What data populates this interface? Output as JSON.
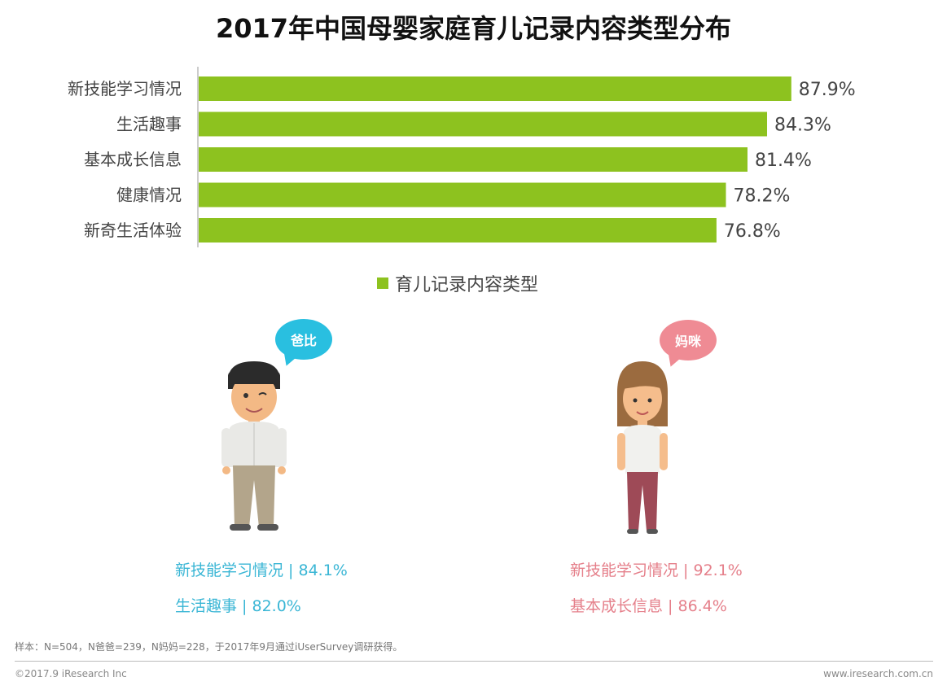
{
  "title": "2017年中国母婴家庭育儿记录内容类型分布",
  "chart_data": {
    "type": "bar",
    "orientation": "horizontal",
    "title": "2017年中国母婴家庭育儿记录内容类型分布",
    "categories": [
      "新技能学习情况",
      "生活趣事",
      "基本成长信息",
      "健康情况",
      "新奇生活体验"
    ],
    "series": [
      {
        "name": "育儿记录内容类型",
        "values": [
          87.9,
          84.3,
          81.4,
          78.2,
          76.8
        ],
        "labels": [
          "87.9%",
          "84.3%",
          "81.4%",
          "78.2%",
          "76.8%"
        ]
      }
    ],
    "xlim": [
      0,
      100
    ],
    "legend": "bottom-center",
    "grid": false,
    "color": "#8dc21f"
  },
  "legend_label": "育儿记录内容类型",
  "dad": {
    "bubble": "爸比",
    "stats": [
      "新技能学习情况 | 84.1%",
      "生活趣事 | 82.0%"
    ],
    "color": "#29bfe0"
  },
  "mom": {
    "bubble": "妈咪",
    "stats": [
      "新技能学习情况 | 92.1%",
      "基本成长信息 | 86.4%"
    ],
    "color": "#ef8b94"
  },
  "footnote": "样本：N=504，N爸爸=239，N妈妈=228，于2017年9月通过iUserSurvey调研获得。",
  "copyright": "©2017.9 iResearch Inc",
  "website": "www.iresearch.com.cn"
}
